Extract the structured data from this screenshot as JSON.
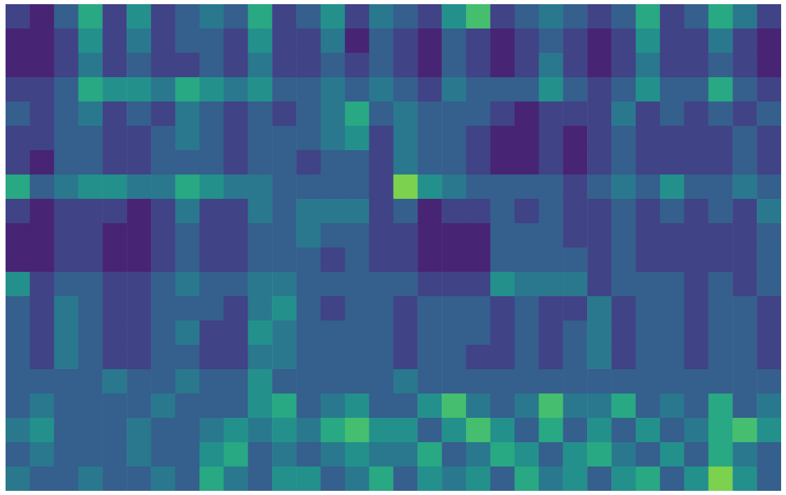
{
  "chart_data": {
    "type": "heatmap",
    "color": "viridis",
    "color_range": [
      0,
      1
    ],
    "grid": false,
    "tick_labels": false,
    "cells": [
      [
        0.2,
        0.1,
        0.3,
        0.6,
        0.2,
        0.5,
        0.2,
        0.3,
        0.4,
        0.3,
        0.6,
        0.2,
        0.3,
        0.5,
        0.2,
        0.4,
        0.3,
        0.2,
        0.5,
        0.7,
        0.2,
        0.3,
        0.4,
        0.3,
        0.2,
        0.3,
        0.6,
        0.2,
        0.3,
        0.6,
        0.4,
        0.2
      ],
      [
        0.1,
        0.1,
        0.2,
        0.5,
        0.2,
        0.4,
        0.2,
        0.3,
        0.3,
        0.2,
        0.5,
        0.2,
        0.2,
        0.4,
        0.1,
        0.3,
        0.2,
        0.1,
        0.3,
        0.2,
        0.1,
        0.2,
        0.3,
        0.2,
        0.1,
        0.2,
        0.5,
        0.2,
        0.2,
        0.4,
        0.2,
        0.1
      ],
      [
        0.1,
        0.1,
        0.2,
        0.4,
        0.2,
        0.3,
        0.2,
        0.2,
        0.3,
        0.2,
        0.4,
        0.2,
        0.2,
        0.3,
        0.2,
        0.3,
        0.2,
        0.1,
        0.3,
        0.2,
        0.1,
        0.2,
        0.4,
        0.2,
        0.1,
        0.2,
        0.4,
        0.2,
        0.2,
        0.3,
        0.2,
        0.1
      ],
      [
        0.2,
        0.2,
        0.3,
        0.6,
        0.5,
        0.5,
        0.4,
        0.6,
        0.5,
        0.4,
        0.5,
        0.3,
        0.3,
        0.4,
        0.3,
        0.4,
        0.3,
        0.2,
        0.4,
        0.3,
        0.3,
        0.3,
        0.5,
        0.3,
        0.2,
        0.3,
        0.5,
        0.3,
        0.3,
        0.6,
        0.3,
        0.2
      ],
      [
        0.3,
        0.2,
        0.3,
        0.4,
        0.2,
        0.3,
        0.2,
        0.4,
        0.3,
        0.2,
        0.3,
        0.2,
        0.3,
        0.4,
        0.6,
        0.3,
        0.4,
        0.3,
        0.3,
        0.3,
        0.2,
        0.1,
        0.2,
        0.2,
        0.2,
        0.4,
        0.2,
        0.3,
        0.2,
        0.3,
        0.2,
        0.3
      ],
      [
        0.2,
        0.2,
        0.3,
        0.3,
        0.2,
        0.2,
        0.3,
        0.4,
        0.3,
        0.2,
        0.3,
        0.3,
        0.3,
        0.4,
        0.5,
        0.2,
        0.4,
        0.3,
        0.3,
        0.2,
        0.1,
        0.1,
        0.2,
        0.1,
        0.2,
        0.3,
        0.2,
        0.2,
        0.2,
        0.2,
        0.3,
        0.2
      ],
      [
        0.2,
        0.1,
        0.3,
        0.3,
        0.2,
        0.2,
        0.3,
        0.3,
        0.3,
        0.2,
        0.3,
        0.3,
        0.2,
        0.3,
        0.3,
        0.2,
        0.4,
        0.3,
        0.3,
        0.2,
        0.1,
        0.1,
        0.2,
        0.1,
        0.2,
        0.3,
        0.2,
        0.2,
        0.2,
        0.2,
        0.3,
        0.2
      ],
      [
        0.6,
        0.3,
        0.4,
        0.5,
        0.5,
        0.4,
        0.4,
        0.6,
        0.5,
        0.4,
        0.4,
        0.3,
        0.3,
        0.3,
        0.3,
        0.2,
        0.8,
        0.5,
        0.4,
        0.3,
        0.3,
        0.3,
        0.3,
        0.2,
        0.3,
        0.4,
        0.3,
        0.5,
        0.3,
        0.3,
        0.4,
        0.3
      ],
      [
        0.2,
        0.1,
        0.2,
        0.2,
        0.2,
        0.1,
        0.2,
        0.4,
        0.2,
        0.2,
        0.4,
        0.3,
        0.4,
        0.4,
        0.4,
        0.2,
        0.3,
        0.1,
        0.2,
        0.2,
        0.3,
        0.2,
        0.3,
        0.2,
        0.2,
        0.3,
        0.2,
        0.3,
        0.2,
        0.3,
        0.2,
        0.4
      ],
      [
        0.1,
        0.1,
        0.2,
        0.2,
        0.1,
        0.1,
        0.2,
        0.3,
        0.2,
        0.2,
        0.3,
        0.3,
        0.4,
        0.3,
        0.3,
        0.2,
        0.2,
        0.1,
        0.1,
        0.1,
        0.3,
        0.3,
        0.3,
        0.2,
        0.2,
        0.3,
        0.2,
        0.2,
        0.2,
        0.2,
        0.2,
        0.3
      ],
      [
        0.1,
        0.1,
        0.2,
        0.2,
        0.1,
        0.1,
        0.2,
        0.3,
        0.2,
        0.2,
        0.3,
        0.3,
        0.3,
        0.2,
        0.3,
        0.2,
        0.2,
        0.1,
        0.1,
        0.1,
        0.3,
        0.3,
        0.3,
        0.3,
        0.2,
        0.3,
        0.2,
        0.2,
        0.2,
        0.2,
        0.2,
        0.3
      ],
      [
        0.5,
        0.2,
        0.3,
        0.3,
        0.2,
        0.2,
        0.3,
        0.4,
        0.3,
        0.3,
        0.4,
        0.4,
        0.3,
        0.3,
        0.3,
        0.3,
        0.3,
        0.2,
        0.2,
        0.2,
        0.5,
        0.4,
        0.4,
        0.4,
        0.2,
        0.3,
        0.3,
        0.3,
        0.2,
        0.3,
        0.2,
        0.3
      ],
      [
        0.3,
        0.2,
        0.4,
        0.3,
        0.2,
        0.2,
        0.3,
        0.3,
        0.3,
        0.2,
        0.4,
        0.5,
        0.3,
        0.2,
        0.3,
        0.3,
        0.2,
        0.3,
        0.3,
        0.3,
        0.2,
        0.3,
        0.2,
        0.2,
        0.4,
        0.2,
        0.3,
        0.3,
        0.2,
        0.3,
        0.3,
        0.2
      ],
      [
        0.3,
        0.2,
        0.4,
        0.3,
        0.2,
        0.2,
        0.3,
        0.4,
        0.2,
        0.2,
        0.5,
        0.4,
        0.3,
        0.3,
        0.3,
        0.3,
        0.2,
        0.3,
        0.3,
        0.3,
        0.2,
        0.3,
        0.2,
        0.3,
        0.4,
        0.2,
        0.3,
        0.3,
        0.2,
        0.3,
        0.3,
        0.2
      ],
      [
        0.3,
        0.2,
        0.4,
        0.3,
        0.2,
        0.2,
        0.3,
        0.3,
        0.2,
        0.2,
        0.4,
        0.4,
        0.3,
        0.3,
        0.3,
        0.3,
        0.2,
        0.3,
        0.3,
        0.2,
        0.2,
        0.3,
        0.2,
        0.3,
        0.4,
        0.2,
        0.3,
        0.3,
        0.2,
        0.3,
        0.3,
        0.2
      ],
      [
        0.3,
        0.3,
        0.3,
        0.3,
        0.4,
        0.3,
        0.3,
        0.4,
        0.3,
        0.3,
        0.5,
        0.3,
        0.3,
        0.3,
        0.3,
        0.3,
        0.4,
        0.3,
        0.3,
        0.3,
        0.3,
        0.3,
        0.3,
        0.3,
        0.3,
        0.3,
        0.3,
        0.3,
        0.3,
        0.3,
        0.3,
        0.3
      ],
      [
        0.3,
        0.4,
        0.3,
        0.3,
        0.3,
        0.3,
        0.4,
        0.3,
        0.3,
        0.3,
        0.5,
        0.6,
        0.3,
        0.4,
        0.5,
        0.3,
        0.3,
        0.5,
        0.7,
        0.4,
        0.3,
        0.4,
        0.7,
        0.4,
        0.4,
        0.6,
        0.3,
        0.4,
        0.3,
        0.6,
        0.3,
        0.4
      ],
      [
        0.4,
        0.5,
        0.3,
        0.3,
        0.3,
        0.4,
        0.3,
        0.3,
        0.4,
        0.5,
        0.4,
        0.5,
        0.4,
        0.6,
        0.7,
        0.5,
        0.5,
        0.3,
        0.5,
        0.7,
        0.5,
        0.3,
        0.6,
        0.3,
        0.5,
        0.3,
        0.5,
        0.3,
        0.4,
        0.6,
        0.7,
        0.5
      ],
      [
        0.3,
        0.4,
        0.3,
        0.3,
        0.3,
        0.4,
        0.3,
        0.3,
        0.5,
        0.6,
        0.3,
        0.4,
        0.3,
        0.4,
        0.5,
        0.4,
        0.4,
        0.6,
        0.3,
        0.4,
        0.6,
        0.5,
        0.3,
        0.5,
        0.6,
        0.4,
        0.3,
        0.5,
        0.3,
        0.6,
        0.4,
        0.3
      ],
      [
        0.4,
        0.3,
        0.3,
        0.4,
        0.3,
        0.3,
        0.4,
        0.3,
        0.6,
        0.4,
        0.3,
        0.5,
        0.5,
        0.3,
        0.4,
        0.6,
        0.3,
        0.5,
        0.4,
        0.5,
        0.3,
        0.6,
        0.4,
        0.5,
        0.3,
        0.5,
        0.6,
        0.3,
        0.5,
        0.8,
        0.5,
        0.3
      ]
    ]
  }
}
